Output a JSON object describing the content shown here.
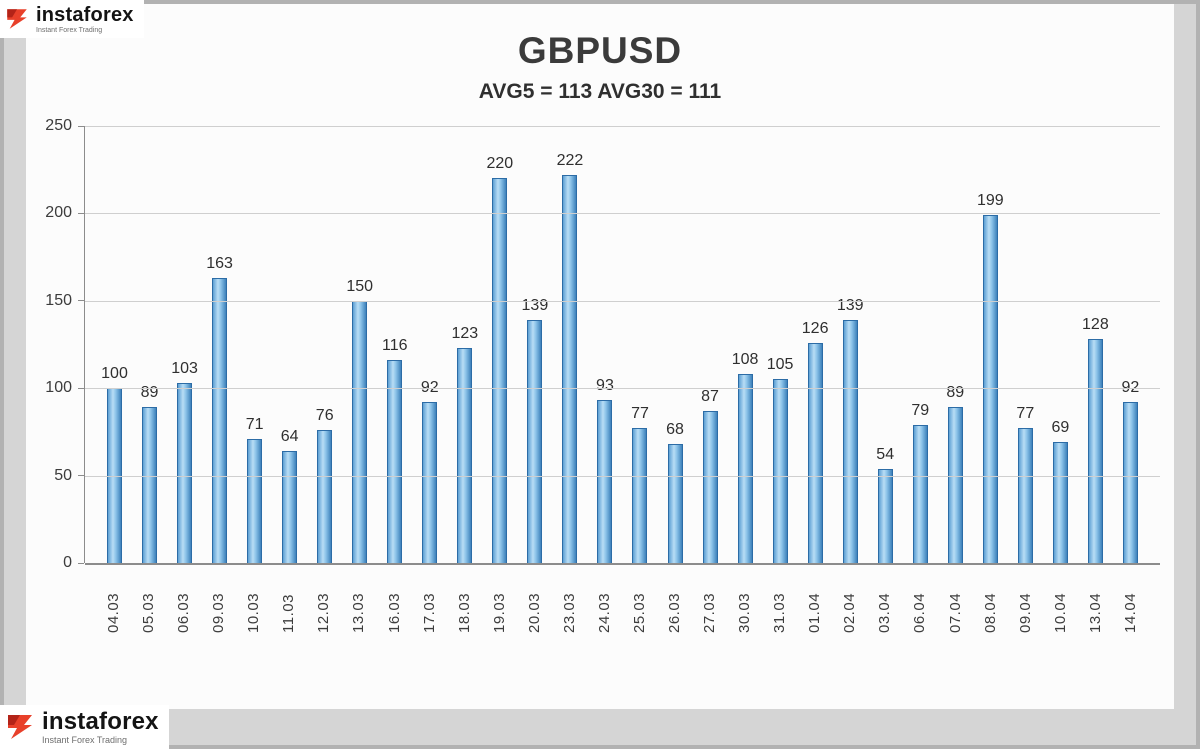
{
  "logo": {
    "brand": "instaforex",
    "tagline": "Instant Forex Trading"
  },
  "chart_data": {
    "type": "bar",
    "title": "GBPUSD",
    "subtitle": "AVG5 = 113 AVG30 = 111",
    "categories": [
      "04.03",
      "05.03",
      "06.03",
      "09.03",
      "10.03",
      "11.03",
      "12.03",
      "13.03",
      "16.03",
      "17.03",
      "18.03",
      "19.03",
      "20.03",
      "23.03",
      "24.03",
      "25.03",
      "26.03",
      "27.03",
      "30.03",
      "31.03",
      "01.04",
      "02.04",
      "03.04",
      "06.04",
      "07.04",
      "08.04",
      "09.04",
      "10.04",
      "13.04",
      "14.04"
    ],
    "values": [
      100,
      89,
      103,
      163,
      71,
      64,
      76,
      150,
      116,
      92,
      123,
      220,
      139,
      222,
      93,
      77,
      68,
      87,
      108,
      105,
      126,
      139,
      54,
      79,
      89,
      199,
      77,
      69,
      128,
      92
    ],
    "ylim": [
      0,
      250
    ],
    "yticks": [
      0,
      50,
      100,
      150,
      200,
      250
    ],
    "grid": true,
    "legend": "none",
    "xlabel": "",
    "ylabel": "",
    "bar_color": "#5b9bd5",
    "bar_border_color": "#2c6ca6"
  }
}
